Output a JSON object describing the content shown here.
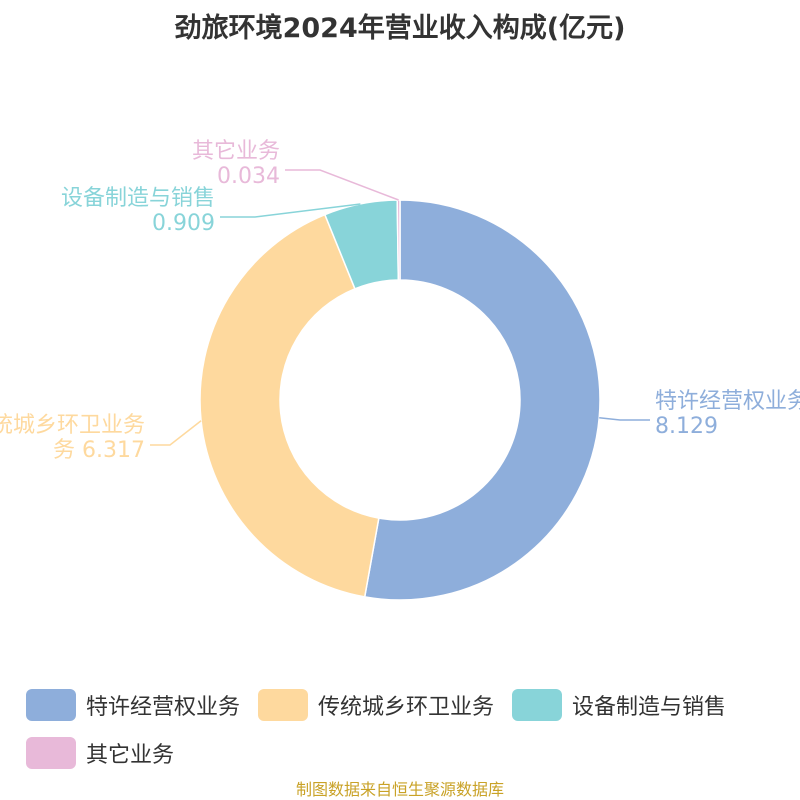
{
  "title": "劲旅环境2024年营业收入构成(亿元)",
  "source_note": "制图数据来自恒生聚源数据库",
  "chart_data": {
    "type": "pie",
    "donut": true,
    "title": "劲旅环境2024年营业收入构成(亿元)",
    "legend_position": "bottom",
    "slices": [
      {
        "name": "特许经营权业务",
        "value": 8.129,
        "color": "#8eaedb",
        "label_lines": [
          "特许经营权业务",
          "8.129"
        ]
      },
      {
        "name": "传统城乡环卫业务",
        "value": 6.317,
        "color": "#fed99e",
        "label_lines": [
          "传统城乡环卫业务",
          "务 6.317"
        ]
      },
      {
        "name": "设备制造与销售",
        "value": 0.909,
        "color": "#88d4d9",
        "label_lines": [
          "设备制造与销售",
          "0.909"
        ]
      },
      {
        "name": "其它业务",
        "value": 0.034,
        "color": "#e8b9d9",
        "label_lines": [
          "其它业务",
          "0.034"
        ]
      }
    ]
  }
}
